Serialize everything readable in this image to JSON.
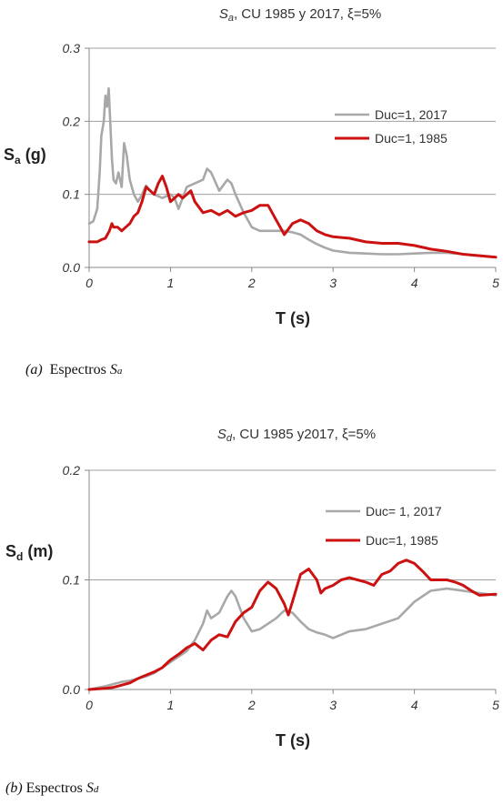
{
  "charts": [
    {
      "title_var": "S",
      "title_sub": "a",
      "title_rest": ", CU 1985 y 2017, ξ=5%",
      "ylabel_main": "S",
      "ylabel_sub": "a",
      "ylabel_unit": " (g)",
      "xlabel": "T (s)",
      "y_ticks": [
        "0.0",
        "0.1",
        "0.2",
        "0.3"
      ],
      "x_ticks": [
        "0",
        "1",
        "2",
        "3",
        "4",
        "5"
      ],
      "caption_label": "(a)",
      "caption_text": "Espectros ",
      "caption_var": "S",
      "caption_sub": "a"
    },
    {
      "title_var": "S",
      "title_sub": "d",
      "title_rest": ", CU 1985 y2017, ξ=5%",
      "ylabel_main": "S",
      "ylabel_sub": "d",
      "ylabel_unit": " (m)",
      "xlabel": "T (s)",
      "y_ticks": [
        "0.0",
        "0.1",
        "0.2"
      ],
      "x_ticks": [
        "0",
        "1",
        "2",
        "3",
        "4",
        "5"
      ],
      "caption_label": "(b)",
      "caption_text": "Espectros ",
      "caption_var": "S",
      "caption_sub": "d"
    }
  ],
  "chart_data": [
    {
      "type": "line",
      "xlim": [
        0,
        5
      ],
      "ylim": [
        0,
        0.3
      ],
      "grid": "horizontal",
      "legend_position": "top-right",
      "series": [
        {
          "name": "Duc=1, 2017",
          "color": "#a8a8a8",
          "x": [
            0,
            0.05,
            0.1,
            0.13,
            0.15,
            0.18,
            0.2,
            0.22,
            0.24,
            0.26,
            0.28,
            0.3,
            0.33,
            0.36,
            0.4,
            0.43,
            0.46,
            0.5,
            0.55,
            0.6,
            0.65,
            0.7,
            0.75,
            0.8,
            0.9,
            1.0,
            1.05,
            1.1,
            1.2,
            1.3,
            1.4,
            1.45,
            1.5,
            1.6,
            1.7,
            1.75,
            1.8,
            1.9,
            2.0,
            2.1,
            2.2,
            2.3,
            2.4,
            2.5,
            2.6,
            2.7,
            2.8,
            2.9,
            3.0,
            3.2,
            3.4,
            3.6,
            3.8,
            4.0,
            4.2,
            4.4,
            4.6,
            4.8,
            5.0
          ],
          "y": [
            0.06,
            0.063,
            0.08,
            0.13,
            0.18,
            0.2,
            0.235,
            0.22,
            0.245,
            0.2,
            0.15,
            0.12,
            0.115,
            0.13,
            0.11,
            0.17,
            0.155,
            0.12,
            0.1,
            0.09,
            0.1,
            0.112,
            0.105,
            0.1,
            0.095,
            0.1,
            0.095,
            0.08,
            0.11,
            0.115,
            0.12,
            0.135,
            0.13,
            0.105,
            0.12,
            0.115,
            0.1,
            0.075,
            0.055,
            0.05,
            0.05,
            0.05,
            0.05,
            0.048,
            0.045,
            0.038,
            0.032,
            0.027,
            0.023,
            0.02,
            0.019,
            0.018,
            0.018,
            0.019,
            0.02,
            0.02,
            0.018,
            0.016,
            0.014
          ]
        },
        {
          "name": "Duc=1, 1985",
          "color": "#cc1111",
          "x": [
            0,
            0.1,
            0.15,
            0.2,
            0.25,
            0.28,
            0.3,
            0.35,
            0.4,
            0.45,
            0.5,
            0.55,
            0.6,
            0.65,
            0.7,
            0.75,
            0.8,
            0.85,
            0.9,
            0.95,
            1.0,
            1.05,
            1.1,
            1.15,
            1.2,
            1.25,
            1.3,
            1.4,
            1.5,
            1.6,
            1.7,
            1.8,
            1.9,
            2.0,
            2.1,
            2.2,
            2.3,
            2.4,
            2.5,
            2.6,
            2.7,
            2.8,
            2.9,
            3.0,
            3.2,
            3.4,
            3.6,
            3.8,
            4.0,
            4.2,
            4.4,
            4.6,
            4.8,
            5.0
          ],
          "y": [
            0.035,
            0.035,
            0.038,
            0.04,
            0.05,
            0.06,
            0.055,
            0.055,
            0.05,
            0.055,
            0.06,
            0.07,
            0.075,
            0.09,
            0.11,
            0.105,
            0.1,
            0.115,
            0.125,
            0.11,
            0.09,
            0.095,
            0.1,
            0.095,
            0.1,
            0.105,
            0.09,
            0.075,
            0.078,
            0.072,
            0.078,
            0.07,
            0.075,
            0.078,
            0.085,
            0.085,
            0.065,
            0.045,
            0.06,
            0.065,
            0.06,
            0.05,
            0.045,
            0.042,
            0.04,
            0.035,
            0.033,
            0.033,
            0.03,
            0.025,
            0.022,
            0.018,
            0.016,
            0.014
          ]
        }
      ]
    },
    {
      "type": "line",
      "xlim": [
        0,
        5
      ],
      "ylim": [
        0,
        0.2
      ],
      "grid": "horizontal",
      "legend_position": "top-right",
      "series": [
        {
          "name": "Duc= 1, 2017",
          "color": "#a8a8a8",
          "x": [
            0,
            0.2,
            0.3,
            0.4,
            0.5,
            0.6,
            0.7,
            0.8,
            0.9,
            1.0,
            1.1,
            1.2,
            1.3,
            1.4,
            1.45,
            1.5,
            1.6,
            1.7,
            1.75,
            1.8,
            1.9,
            2.0,
            2.1,
            2.2,
            2.3,
            2.4,
            2.5,
            2.6,
            2.7,
            2.8,
            2.9,
            3.0,
            3.1,
            3.2,
            3.4,
            3.6,
            3.8,
            4.0,
            4.2,
            4.4,
            4.6,
            4.8,
            5.0
          ],
          "y": [
            0,
            0.003,
            0.005,
            0.007,
            0.008,
            0.01,
            0.012,
            0.015,
            0.02,
            0.025,
            0.03,
            0.035,
            0.045,
            0.06,
            0.072,
            0.065,
            0.07,
            0.085,
            0.09,
            0.085,
            0.065,
            0.053,
            0.055,
            0.06,
            0.065,
            0.072,
            0.07,
            0.062,
            0.055,
            0.052,
            0.05,
            0.047,
            0.05,
            0.053,
            0.055,
            0.06,
            0.065,
            0.08,
            0.09,
            0.092,
            0.09,
            0.088,
            0.086
          ]
        },
        {
          "name": "Duc=1, 1985",
          "color": "#cc1111",
          "x": [
            0,
            0.2,
            0.3,
            0.4,
            0.5,
            0.6,
            0.7,
            0.8,
            0.9,
            1.0,
            1.1,
            1.2,
            1.3,
            1.4,
            1.5,
            1.6,
            1.7,
            1.8,
            1.9,
            2.0,
            2.1,
            2.2,
            2.3,
            2.4,
            2.45,
            2.5,
            2.6,
            2.7,
            2.8,
            2.85,
            2.9,
            3.0,
            3.1,
            3.2,
            3.3,
            3.4,
            3.5,
            3.6,
            3.7,
            3.8,
            3.9,
            4.0,
            4.1,
            4.2,
            4.3,
            4.4,
            4.5,
            4.6,
            4.7,
            4.8,
            5.0
          ],
          "y": [
            0,
            0.001,
            0.002,
            0.004,
            0.006,
            0.01,
            0.013,
            0.016,
            0.02,
            0.027,
            0.032,
            0.038,
            0.042,
            0.036,
            0.045,
            0.05,
            0.048,
            0.062,
            0.07,
            0.075,
            0.09,
            0.098,
            0.092,
            0.078,
            0.068,
            0.08,
            0.105,
            0.11,
            0.1,
            0.088,
            0.092,
            0.095,
            0.1,
            0.102,
            0.1,
            0.098,
            0.095,
            0.105,
            0.108,
            0.115,
            0.118,
            0.115,
            0.108,
            0.1,
            0.1,
            0.1,
            0.098,
            0.095,
            0.09,
            0.086,
            0.087
          ]
        }
      ]
    }
  ]
}
